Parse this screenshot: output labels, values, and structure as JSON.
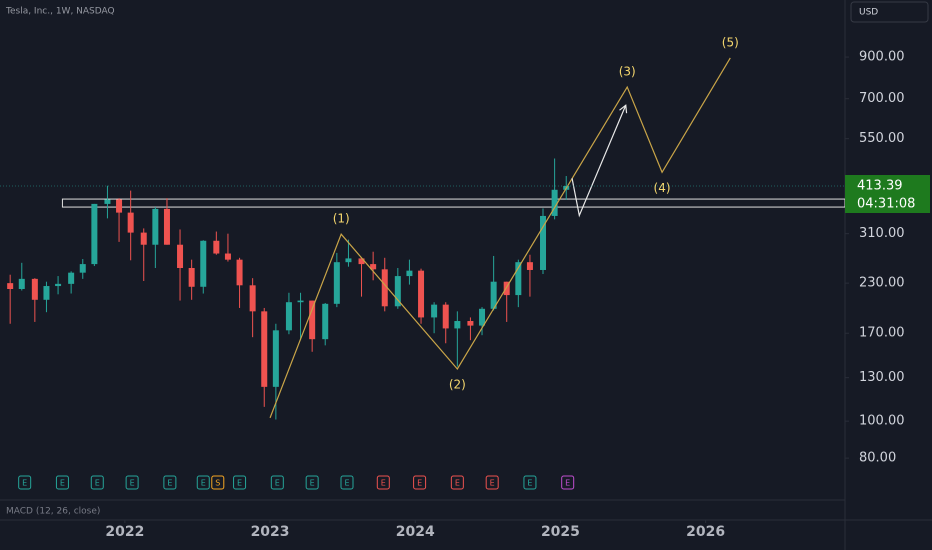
{
  "chart_data": {
    "type": "candlestick",
    "title": "Tesla, Inc., 1W, NASDAQ",
    "currency": "USD",
    "indicator": "MACD (12, 26, close)",
    "countdown": "04:31:08",
    "log_scale": true,
    "up_color": "#26a69a",
    "down_color": "#ef5350",
    "xlim": [
      2021.14,
      2026.96
    ],
    "xticks": [
      2022,
      2023,
      2024,
      2025,
      2026
    ],
    "ylim": [
      66,
      1270
    ],
    "yticks": [
      {
        "value": 900,
        "label": "900.00"
      },
      {
        "value": 700,
        "label": "700.00"
      },
      {
        "value": 550,
        "label": "550.00"
      },
      {
        "value": 310,
        "label": "310.00"
      },
      {
        "value": 230,
        "label": "230.00"
      },
      {
        "value": 170,
        "label": "170.00"
      },
      {
        "value": 130,
        "label": "130.00"
      },
      {
        "value": 100,
        "label": "100.00"
      },
      {
        "value": 80,
        "label": "80.00"
      }
    ],
    "x": [
      2021.21,
      2021.29,
      2021.38,
      2021.46,
      2021.54,
      2021.63,
      2021.71,
      2021.79,
      2021.88,
      2021.96,
      2022.04,
      2022.13,
      2022.21,
      2022.29,
      2022.38,
      2022.46,
      2022.54,
      2022.63,
      2022.71,
      2022.79,
      2022.88,
      2022.96,
      2023.04,
      2023.13,
      2023.21,
      2023.29,
      2023.38,
      2023.46,
      2023.54,
      2023.63,
      2023.71,
      2023.79,
      2023.88,
      2023.96,
      2024.04,
      2024.13,
      2024.21,
      2024.29,
      2024.38,
      2024.46,
      2024.54,
      2024.63,
      2024.71,
      2024.79,
      2024.88,
      2024.96,
      2025.04
    ],
    "open": [
      230,
      222,
      236,
      208,
      226,
      229,
      245,
      258,
      371,
      381,
      352,
      312,
      290,
      360,
      290,
      252,
      225,
      297,
      275,
      265,
      227,
      194,
      123,
      173,
      205,
      207,
      164,
      203,
      261,
      267,
      258,
      250,
      200,
      240,
      248,
      187,
      202,
      175,
      183,
      178,
      197,
      232,
      214,
      261,
      249,
      345,
      404
    ],
    "high": [
      242,
      260,
      237,
      232,
      240,
      247,
      266,
      371,
      414,
      384,
      402,
      320,
      364,
      384,
      318,
      265,
      298,
      314,
      310,
      268,
      237,
      198,
      180,
      217,
      217,
      207,
      204,
      276,
      299,
      267,
      278,
      268,
      252,
      265,
      251,
      205,
      205,
      194,
      187,
      199,
      271,
      232,
      265,
      273,
      361,
      488,
      439
    ],
    "low": [
      180,
      220,
      182,
      193,
      215,
      216,
      236,
      255,
      340,
      295,
      264,
      233,
      252,
      290,
      207,
      208,
      216,
      273,
      262,
      198,
      166,
      109,
      101,
      169,
      163,
      152,
      158,
      199,
      254,
      212,
      234,
      194,
      197,
      228,
      180,
      170,
      160,
      139,
      163,
      168,
      195,
      182,
      199,
      212,
      243,
      338,
      380
    ],
    "close": [
      222,
      236,
      208,
      226,
      229,
      245,
      258,
      371,
      381,
      352,
      312,
      290,
      360,
      290,
      252,
      225,
      297,
      275,
      265,
      227,
      194,
      123,
      173,
      205,
      207,
      164,
      203,
      261,
      267,
      258,
      250,
      200,
      240,
      248,
      187,
      202,
      175,
      183,
      178,
      197,
      232,
      214,
      261,
      249,
      345,
      404,
      413.39
    ],
    "zone": {
      "x0": 2021.57,
      "y": [
        364,
        382
      ]
    },
    "wave": {
      "color": "#c9a548",
      "label_color": "#f5d76e",
      "x": [
        2023.0,
        2023.49,
        2024.29,
        2025.46,
        2025.7,
        2026.17
      ],
      "y": [
        102,
        309,
        137,
        751,
        449,
        895
      ],
      "labels": [
        null,
        "(1)",
        "(2)",
        "(3)",
        "(4)",
        "(5)"
      ]
    },
    "arrow": {
      "color": "#e8e8e8",
      "x": [
        2025.08,
        2025.13,
        2025.45
      ],
      "y": [
        433,
        346,
        673
      ]
    },
    "events": [
      {
        "x": 2021.31,
        "label": "E",
        "color": "#26a69a"
      },
      {
        "x": 2021.57,
        "label": "E",
        "color": "#26a69a"
      },
      {
        "x": 2021.81,
        "label": "E",
        "color": "#26a69a"
      },
      {
        "x": 2022.05,
        "label": "E",
        "color": "#26a69a"
      },
      {
        "x": 2022.31,
        "label": "E",
        "color": "#26a69a"
      },
      {
        "x": 2022.54,
        "label": "E",
        "color": "#26a69a"
      },
      {
        "x": 2022.64,
        "label": "S",
        "color": "#f5a623"
      },
      {
        "x": 2022.79,
        "label": "E",
        "color": "#26a69a"
      },
      {
        "x": 2023.05,
        "label": "E",
        "color": "#26a69a"
      },
      {
        "x": 2023.29,
        "label": "E",
        "color": "#26a69a"
      },
      {
        "x": 2023.53,
        "label": "E",
        "color": "#26a69a"
      },
      {
        "x": 2023.78,
        "label": "E",
        "color": "#ef5350"
      },
      {
        "x": 2024.03,
        "label": "E",
        "color": "#ef5350"
      },
      {
        "x": 2024.29,
        "label": "E",
        "color": "#ef5350"
      },
      {
        "x": 2024.53,
        "label": "E",
        "color": "#ef5350"
      },
      {
        "x": 2024.79,
        "label": "E",
        "color": "#26a69a"
      },
      {
        "x": 2025.05,
        "label": "E",
        "color": "#c04fd0"
      }
    ]
  }
}
